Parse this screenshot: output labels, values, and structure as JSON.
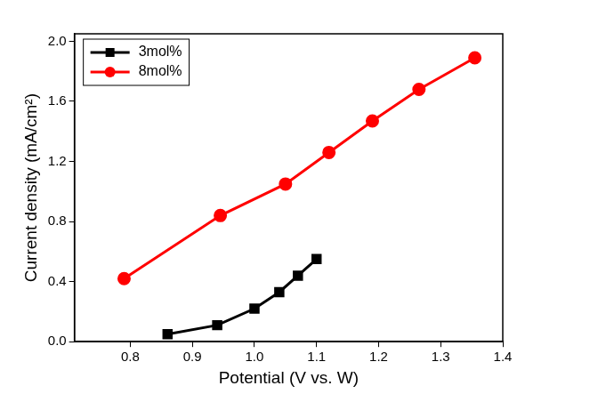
{
  "chart_data": {
    "type": "line",
    "x_label": "Potential (V vs. W)",
    "y_label": "Current density (mA/cm²)",
    "xlim": [
      0.71,
      1.4
    ],
    "xticks": [
      0.8,
      0.9,
      {
        "value": 1,
        "label": "1.0"
      },
      1.1,
      1.2,
      1.3,
      1.4
    ],
    "ylim": [
      0,
      2.05
    ],
    "yticks": [
      {
        "value": 0,
        "label": "0.0"
      },
      0.4,
      0.8,
      1.2,
      1.6,
      {
        "value": 2,
        "label": "2.0"
      }
    ],
    "grid": false,
    "legend": "upper left",
    "series": [
      {
        "name": "3mol%",
        "color": "#000000",
        "marker": "square",
        "x": [
          0.86,
          0.94,
          1.0,
          1.04,
          1.07,
          1.1
        ],
        "values": [
          0.05,
          0.11,
          0.22,
          0.33,
          0.44,
          0.55
        ]
      },
      {
        "name": "8mol%",
        "color": "#ff0000",
        "marker": "circle",
        "x": [
          0.79,
          0.945,
          1.05,
          1.12,
          1.19,
          1.265,
          1.355
        ],
        "values": [
          0.42,
          0.84,
          1.05,
          1.26,
          1.47,
          1.68,
          1.89
        ]
      }
    ]
  }
}
